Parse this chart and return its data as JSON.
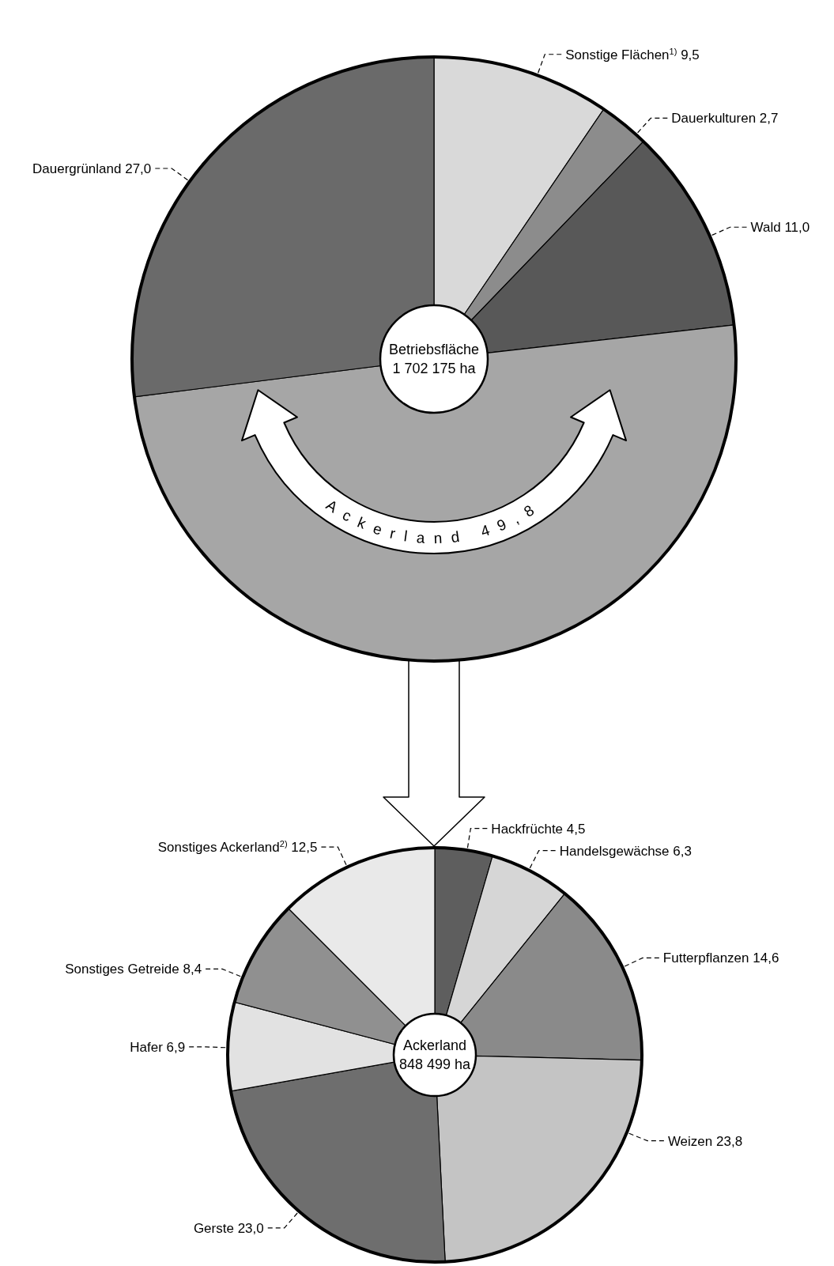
{
  "chart_data": [
    {
      "type": "donut",
      "categories": [
        "Sonstige Flächen$^{1)}$",
        "Dauerkulturen",
        "Wald",
        "Ackerland",
        "Dauergrünland"
      ],
      "values": [
        9.5,
        2.7,
        11.0,
        49.8,
        27.0
      ],
      "value_labels": [
        "9,5",
        "2,7",
        "11,0",
        "49,8",
        "27,0"
      ],
      "colors": [
        "#d9d9d9",
        "#8c8c8c",
        "#585858",
        "#a6a6a6",
        "#6a6a6a"
      ],
      "annotations": [
        "Betriebsfläche",
        "1 702 175 ha"
      ]
    },
    {
      "type": "donut",
      "categories": [
        "Hackfrüchte",
        "Handelsgewächse",
        "Futterpflanzen",
        "Weizen",
        "Gerste",
        "Hafer",
        "Sonstiges Getreide",
        "Sonstiges Ackerland$^{2)}$"
      ],
      "values": [
        4.5,
        6.3,
        14.6,
        23.8,
        23.0,
        6.9,
        8.4,
        12.5
      ],
      "value_labels": [
        "4,5",
        "6,3",
        "14,6",
        "23,8",
        "23,0",
        "6,9",
        "8,4",
        "12,5"
      ],
      "colors": [
        "#5e5e5e",
        "#d6d6d6",
        "#8a8a8a",
        "#c4c4c4",
        "#6e6e6e",
        "#e2e2e2",
        "#909090",
        "#e9e9e9"
      ],
      "annotations": [
        "Ackerland",
        "848 499 ha"
      ]
    }
  ]
}
